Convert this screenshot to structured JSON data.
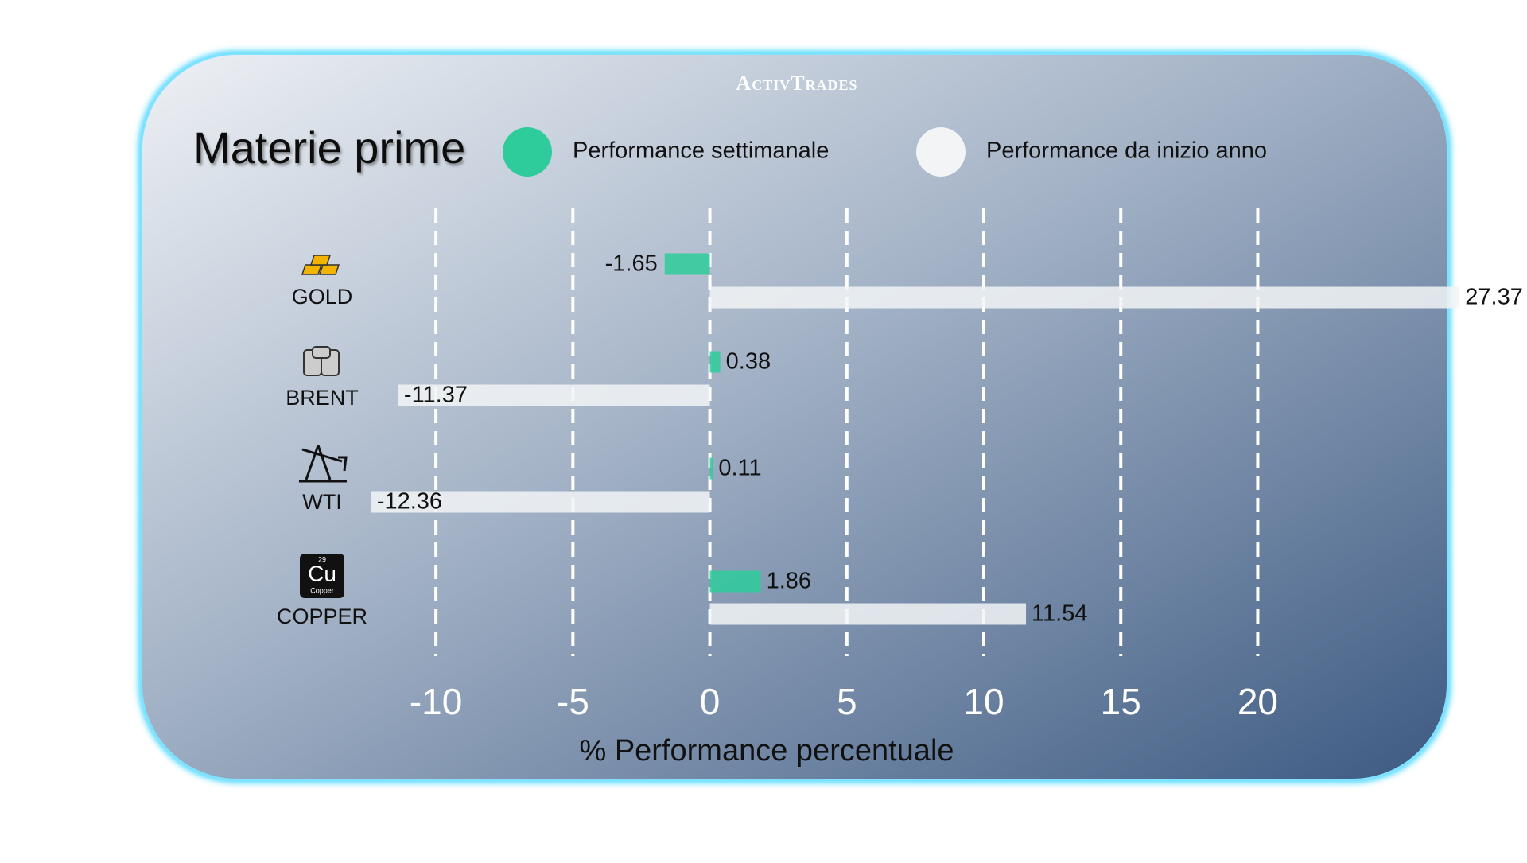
{
  "logo": "ActivTrades",
  "chart_data": {
    "type": "hbar",
    "title": "Materie prime",
    "categories": [
      "GOLD",
      "BRENT",
      "WTI",
      "COPPER"
    ],
    "series": [
      {
        "name": "Performance settimanale",
        "color": "#2ecc9a",
        "values": [
          -1.65,
          0.38,
          0.11,
          1.86
        ]
      },
      {
        "name": "Performance da inizio anno",
        "color": "#f2f4f6",
        "values": [
          27.37,
          -11.37,
          -12.36,
          11.54
        ]
      }
    ],
    "xlabel": "% Performance percentuale",
    "xlim": [
      -12.5,
      28
    ],
    "xticks": [
      -10,
      -5,
      0,
      5,
      10,
      15,
      20
    ],
    "grid": true,
    "copper_icon": {
      "number": 29,
      "symbol": "Cu",
      "name": "Copper"
    }
  }
}
